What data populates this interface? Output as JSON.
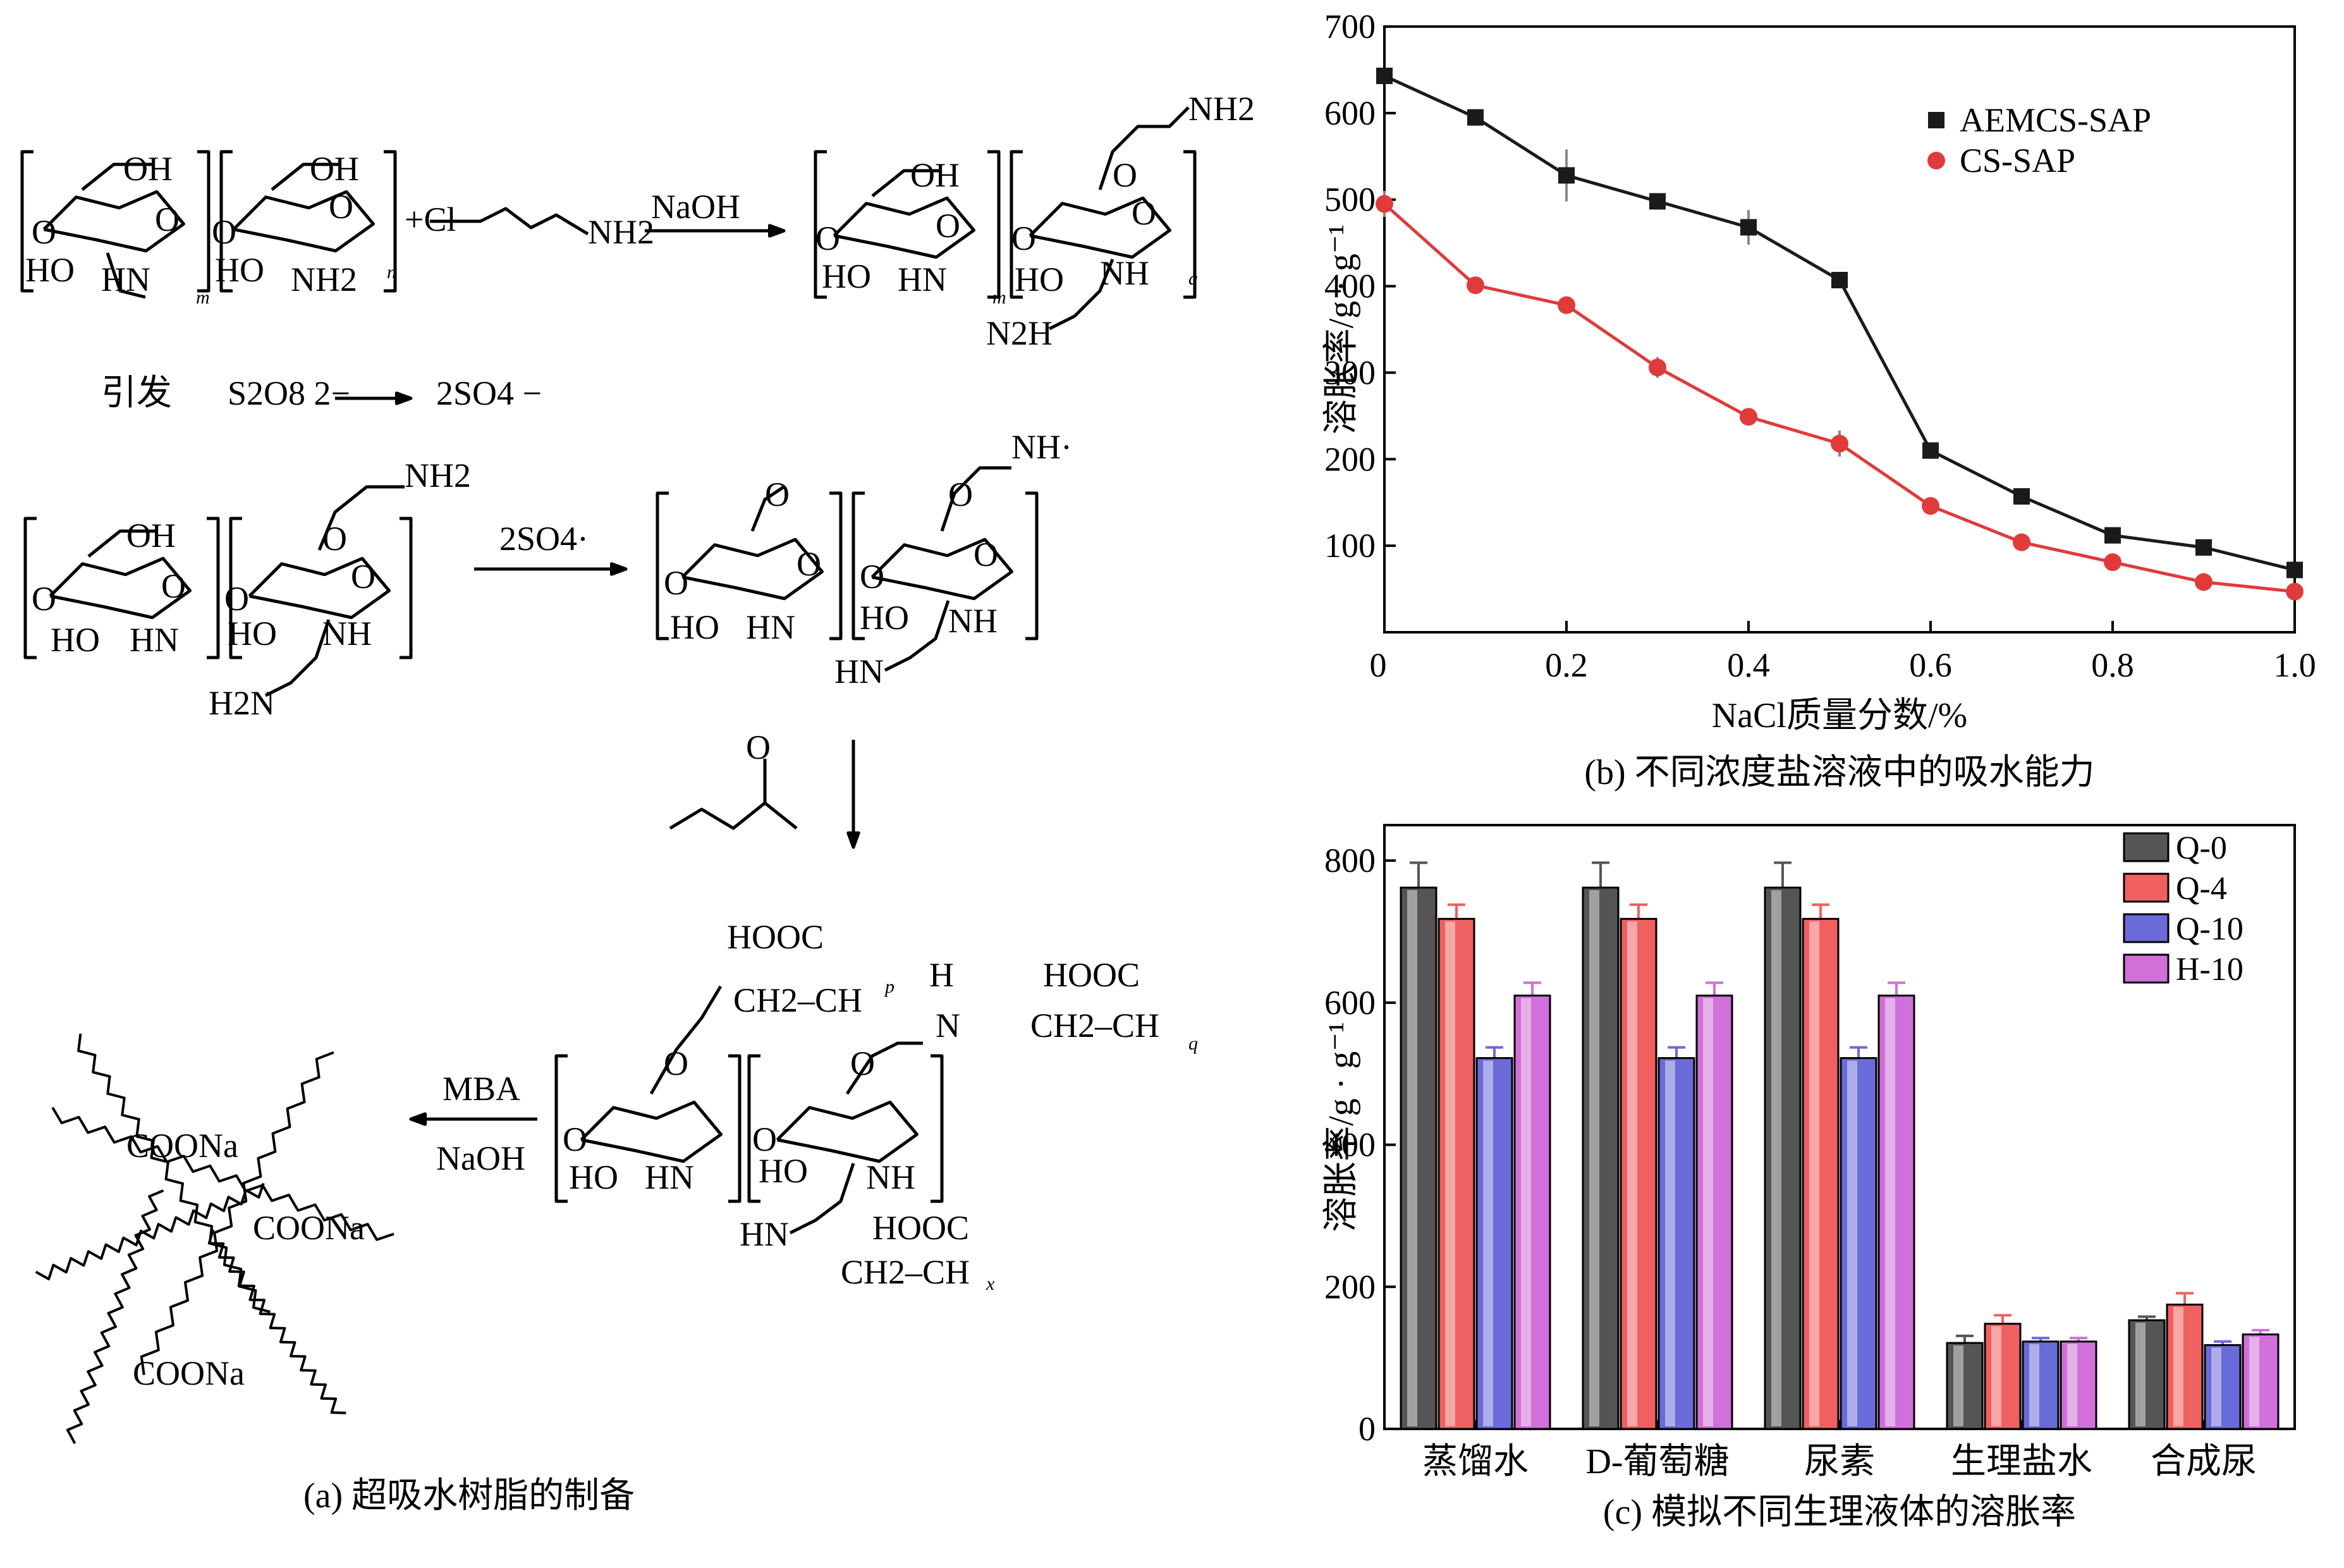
{
  "panel_a": {
    "caption": "(a) 超吸水树脂的制备",
    "labels": {
      "oh": "OH",
      "o": "O",
      "ho": "HO",
      "hn": "HN",
      "nh": "NH",
      "nh2": "NH2",
      "cl": "+Cl",
      "naoh": "NaOH",
      "n2h": "N2H",
      "h2n": "H2N",
      "initiate": "引发",
      "s2o8": "S2O8 2−",
      "so4": "2SO4 −",
      "so4_radical": "2SO4·",
      "nh_radical": "NH·",
      "hooc": "HOOC",
      "ch2ch": "CH2–CH",
      "h": "H",
      "n": "N",
      "mba": "MBA",
      "coona": "COONa",
      "sub_m": "m",
      "sub_n": "n",
      "sub_a": "a",
      "sub_p": "p",
      "sub_q": "q",
      "sub_x": "x"
    }
  },
  "chart_data": [
    {
      "type": "line",
      "caption": "(b) 不同浓度盐溶液中的吸水能力",
      "xlabel": "NaCl质量分数/%",
      "ylabel": "溶胀率/g · g⁻¹",
      "xlim": [
        0,
        1.0
      ],
      "ylim": [
        0,
        700
      ],
      "xticks": [
        0,
        0.2,
        0.4,
        0.6,
        0.8,
        1.0
      ],
      "yticks": [
        100,
        200,
        300,
        400,
        500,
        600,
        700
      ],
      "legend_position": "top-right",
      "x": [
        0,
        0.1,
        0.2,
        0.3,
        0.4,
        0.5,
        0.6,
        0.7,
        0.8,
        0.9,
        1.0
      ],
      "series": [
        {
          "name": "AEMCS-SAP",
          "color": "#1a1a1a",
          "marker": "square",
          "values": [
            643,
            595,
            528,
            498,
            468,
            407,
            210,
            157,
            112,
            98,
            72
          ],
          "errors": [
            8,
            0,
            30,
            0,
            20,
            0,
            0,
            0,
            8,
            0,
            0
          ]
        },
        {
          "name": "CS-SAP",
          "color": "#e03a3a",
          "marker": "circle",
          "values": [
            495,
            401,
            378,
            306,
            249,
            218,
            146,
            104,
            81,
            58,
            47
          ],
          "errors": [
            15,
            0,
            6,
            12,
            0,
            15,
            0,
            0,
            0,
            0,
            0
          ]
        }
      ]
    },
    {
      "type": "bar",
      "caption": "(c) 模拟不同生理液体的溶胀率",
      "ylabel": "溶胀率/g · g⁻¹",
      "ylim": [
        0,
        850
      ],
      "yticks": [
        0,
        200,
        400,
        600,
        800
      ],
      "legend_position": "top-right",
      "categories": [
        "蒸馏水",
        "D-葡萄糖",
        "尿素",
        "生理盐水",
        "合成尿"
      ],
      "series": [
        {
          "name": "Q-0",
          "color": "#555555",
          "values": [
            762,
            762,
            762,
            121,
            153
          ],
          "errors": [
            35,
            35,
            35,
            10,
            5
          ]
        },
        {
          "name": "Q-4",
          "color": "#f06060",
          "values": [
            718,
            718,
            718,
            148,
            175
          ],
          "errors": [
            20,
            20,
            20,
            12,
            16
          ]
        },
        {
          "name": "Q-10",
          "color": "#6a6ad8",
          "values": [
            522,
            522,
            522,
            123,
            118
          ],
          "errors": [
            15,
            15,
            15,
            5,
            5
          ]
        },
        {
          "name": "H-10",
          "color": "#d070d8",
          "values": [
            610,
            610,
            610,
            123,
            133
          ],
          "errors": [
            18,
            18,
            18,
            5,
            6
          ]
        }
      ]
    }
  ]
}
